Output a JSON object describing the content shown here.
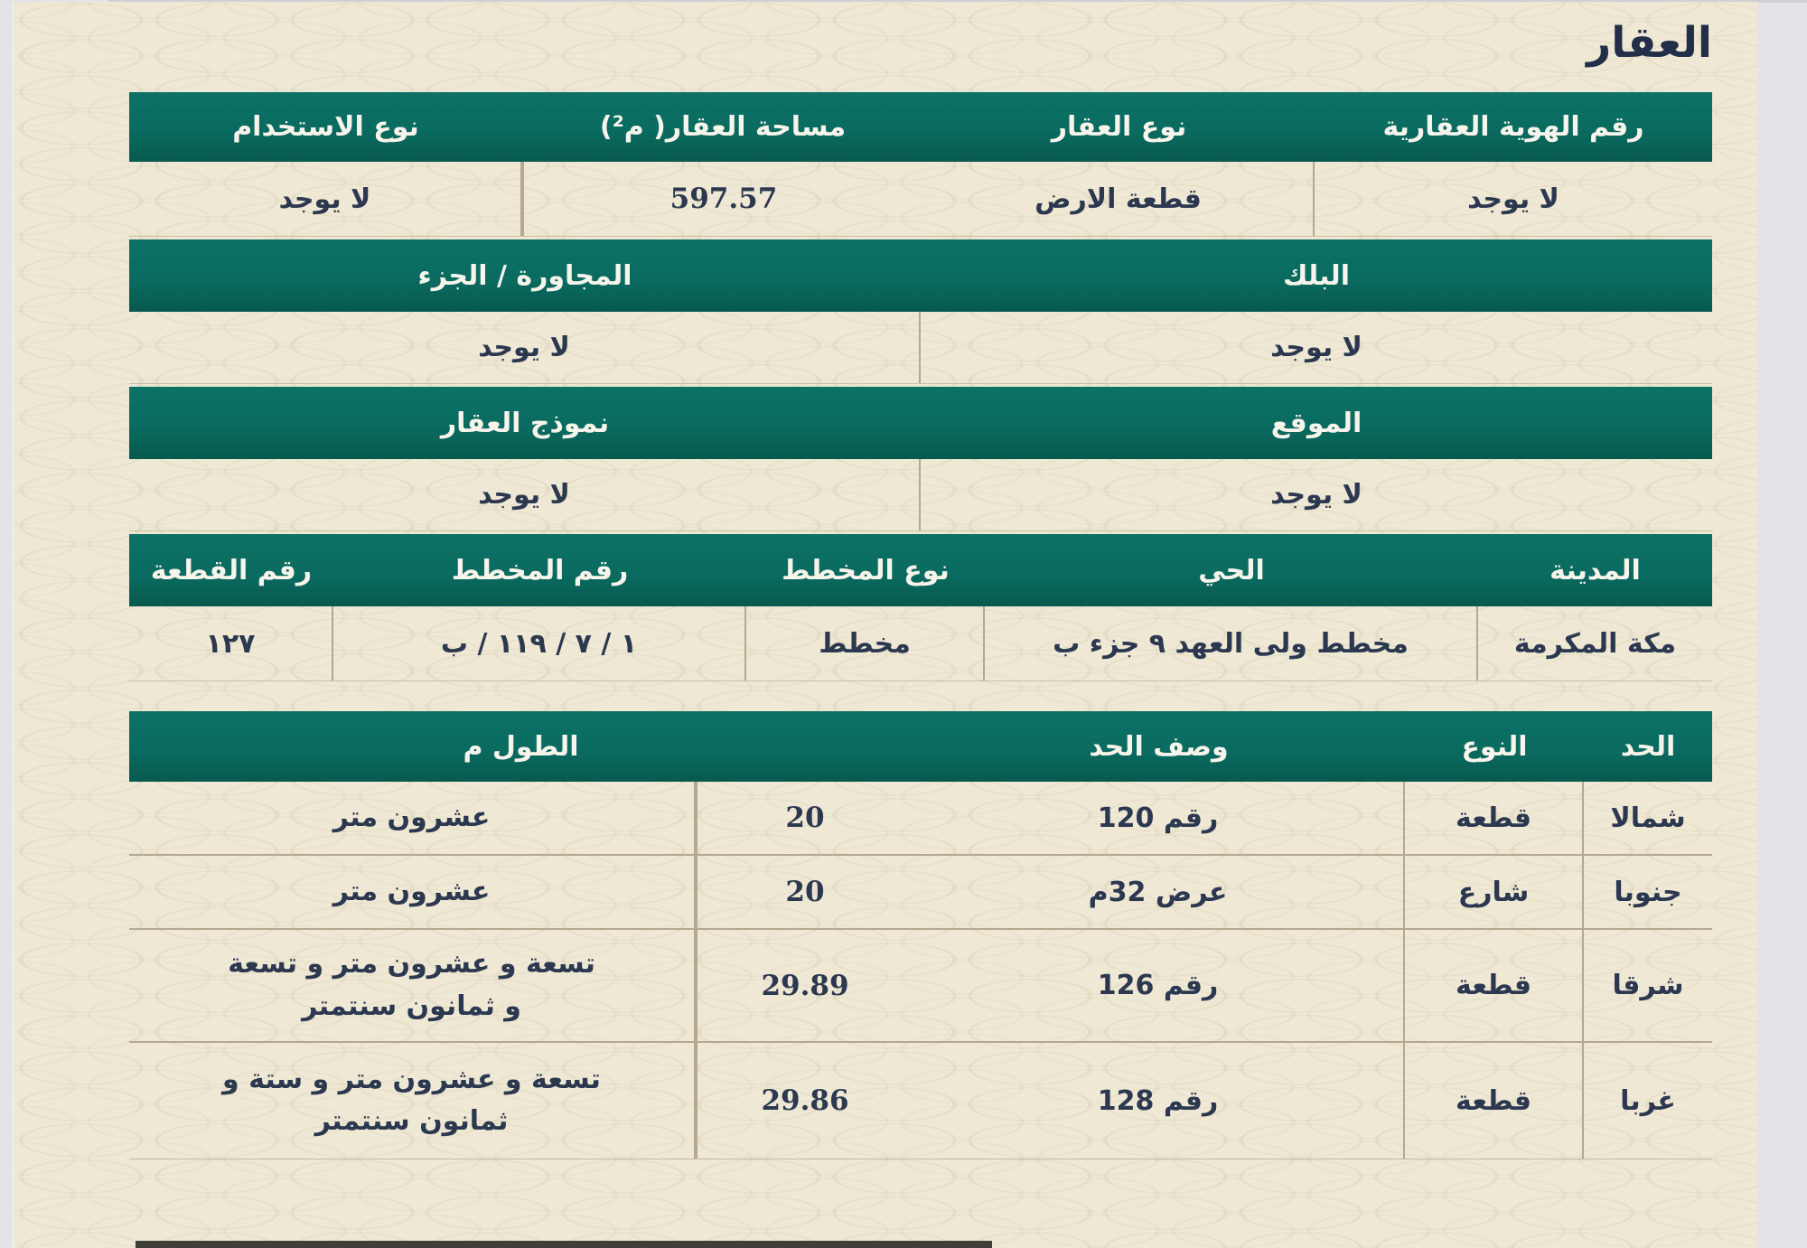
{
  "title": "العقار",
  "colors": {
    "header_bg": "#0a6b60",
    "page_bg": "#eee8d4",
    "header_text": "#f7f4ec",
    "value_text": "#2c3850"
  },
  "property": {
    "identity": {
      "headers": [
        "رقم الهوية العقارية",
        "نوع العقار",
        "مساحة العقار( م²)",
        "نوع الاستخدام"
      ],
      "values": [
        "لا يوجد",
        "قطعة الارض",
        "597.57",
        "لا يوجد"
      ]
    },
    "block": {
      "headers": [
        "البلك",
        "المجاورة / الجزء"
      ],
      "values": [
        "لا يوجد",
        "لا يوجد"
      ]
    },
    "location": {
      "headers": [
        "الموقع",
        "نموذج العقار"
      ],
      "values": [
        "لا يوجد",
        "لا يوجد"
      ]
    },
    "plan": {
      "headers": [
        "المدينة",
        "الحي",
        "نوع المخطط",
        "رقم المخطط",
        "رقم القطعة"
      ],
      "values": [
        "مكة المكرمة",
        "مخطط ولى العهد ٩ جزء ب",
        "مخطط",
        "١ / ٧ / ١١٩ / ب",
        "١٢٧"
      ]
    }
  },
  "boundaries": {
    "headers": [
      "الحد",
      "النوع",
      "وصف الحد",
      "الطول م"
    ],
    "rows": [
      {
        "side": "شمالا",
        "type": "قطعة",
        "description": "رقم 120",
        "length": "20",
        "length_text": "عشرون متر"
      },
      {
        "side": "جنوبا",
        "type": "شارع",
        "description": "عرض 32م",
        "length": "20",
        "length_text": "عشرون متر"
      },
      {
        "side": "شرقا",
        "type": "قطعة",
        "description": "رقم 126",
        "length": "29.89",
        "length_text": "تسعة و عشرون متر و تسعة و ثمانون سنتمتر"
      },
      {
        "side": "غربا",
        "type": "قطعة",
        "description": "رقم 128",
        "length": "29.86",
        "length_text": "تسعة و عشرون متر و ستة و ثمانون سنتمتر"
      }
    ]
  }
}
